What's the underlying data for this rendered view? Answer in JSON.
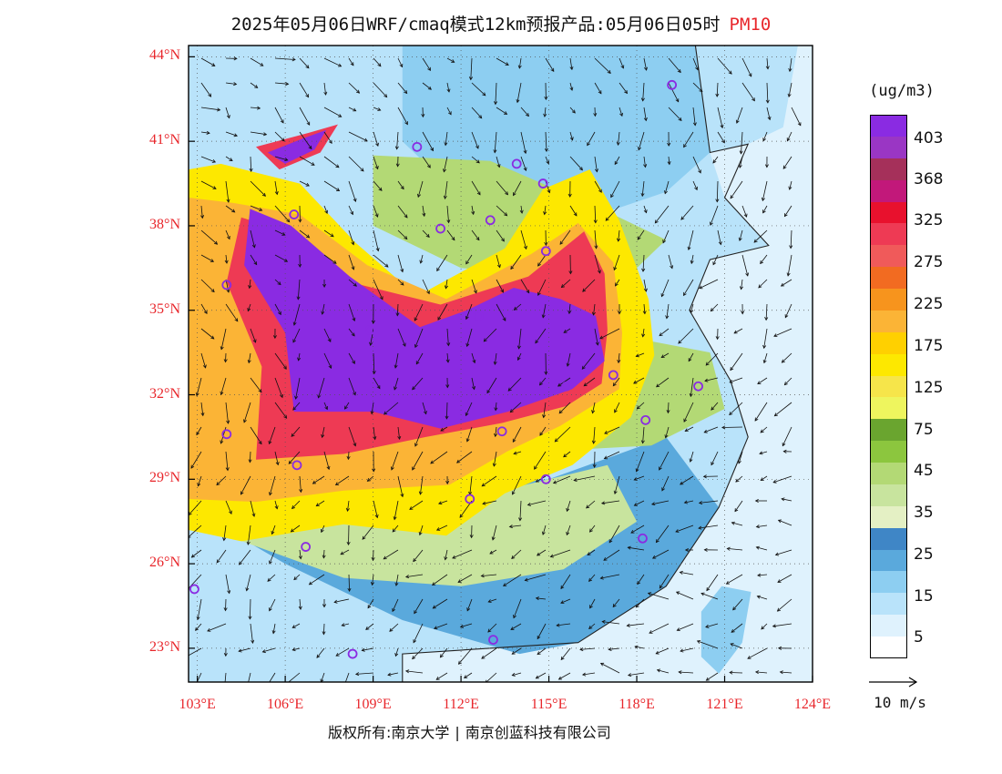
{
  "title": "2025年05月06日WRF/cmaq模式12km预报产品:05月06日05时",
  "variable": "PM10",
  "latitude_labels": [
    "44°N",
    "41°N",
    "38°N",
    "35°N",
    "32°N",
    "29°N",
    "26°N",
    "23°N"
  ],
  "longitude_labels": [
    "103°E",
    "106°E",
    "109°E",
    "112°E",
    "115°E",
    "118°E",
    "121°E",
    "124°E"
  ],
  "colorbar": {
    "unit": "(ug/m3)",
    "bins": [
      {
        "color": "#ffffff"
      },
      {
        "color": "#dff2fd"
      },
      {
        "color": "#b9e3fa"
      },
      {
        "color": "#8dcef1"
      },
      {
        "color": "#5aa9dc"
      },
      {
        "color": "#3f86c6"
      },
      {
        "color": "#e4f0c4"
      },
      {
        "color": "#c8e49e"
      },
      {
        "color": "#b3d975"
      },
      {
        "color": "#8cc63e"
      },
      {
        "color": "#6aa52f"
      },
      {
        "color": "#eef55e"
      },
      {
        "color": "#f6e54a"
      },
      {
        "color": "#fde800"
      },
      {
        "color": "#ffd000"
      },
      {
        "color": "#fbb436"
      },
      {
        "color": "#f7941d"
      },
      {
        "color": "#f26b21"
      },
      {
        "color": "#f05a5a"
      },
      {
        "color": "#ee3a54"
      },
      {
        "color": "#e8112d"
      },
      {
        "color": "#c2187a"
      },
      {
        "color": "#a5305a"
      },
      {
        "color": "#9a36c4"
      },
      {
        "color": "#8a2be2"
      }
    ],
    "labels": [
      "403",
      "368",
      "325",
      "275",
      "225",
      "175",
      "125",
      "75",
      "45",
      "35",
      "25",
      "15",
      "5"
    ]
  },
  "reference_vector": "10 m/s",
  "copyright": {
    "owner": "版权所有:南京大学",
    "partner": "南京创蓝科技有限公司"
  },
  "map_data": {
    "extent": {
      "lon_min": 102.7,
      "lon_max": 124.0,
      "lat_min": 21.8,
      "lat_max": 44.4
    },
    "zones": [
      {
        "name": "sea-east",
        "color": "#dff2fd",
        "poly": [
          [
            120,
            44.4
          ],
          [
            124,
            44.4
          ],
          [
            124,
            21.8
          ],
          [
            110,
            21.8
          ],
          [
            110,
            22.8
          ],
          [
            116,
            23.2
          ],
          [
            119,
            25.2
          ],
          [
            120.8,
            28
          ],
          [
            121.8,
            30.5
          ],
          [
            121.2,
            32.5
          ],
          [
            119.8,
            35
          ],
          [
            120.5,
            36.8
          ],
          [
            122.5,
            37.3
          ],
          [
            121,
            39
          ],
          [
            120.5,
            40.6
          ],
          [
            121.8,
            40.9
          ],
          [
            123,
            41.5
          ],
          [
            123.5,
            44.4
          ]
        ]
      },
      {
        "name": "taiwan-hi",
        "color": "#8dcef1",
        "poly": [
          [
            120.9,
            25.2
          ],
          [
            121.9,
            25
          ],
          [
            121.6,
            23.2
          ],
          [
            120.8,
            22.1
          ],
          [
            120.2,
            22.7
          ],
          [
            120.2,
            24.3
          ]
        ]
      },
      {
        "name": "land-north",
        "color": "#8dcef1",
        "poly": [
          [
            110,
            44.4
          ],
          [
            120,
            44.4
          ],
          [
            120.5,
            40.6
          ],
          [
            119,
            39.2
          ],
          [
            117,
            38.5
          ],
          [
            112,
            39
          ],
          [
            110,
            41
          ]
        ]
      },
      {
        "name": "land-south",
        "color": "#5aa9dc",
        "poly": [
          [
            102.7,
            28
          ],
          [
            106,
            26
          ],
          [
            110,
            24
          ],
          [
            114,
            22.8
          ],
          [
            116,
            23.2
          ],
          [
            119,
            25.2
          ],
          [
            120.8,
            28
          ],
          [
            119,
            30.5
          ],
          [
            115,
            29
          ],
          [
            110,
            28.5
          ],
          [
            106,
            29
          ],
          [
            102.7,
            29.5
          ]
        ]
      },
      {
        "name": "south-green",
        "color": "#c8e49e",
        "poly": [
          [
            104,
            27
          ],
          [
            108,
            25.5
          ],
          [
            112,
            25.2
          ],
          [
            115.5,
            25.8
          ],
          [
            118,
            27.5
          ],
          [
            117,
            29.5
          ],
          [
            113,
            28.5
          ],
          [
            108,
            27.8
          ],
          [
            104,
            28.2
          ]
        ]
      },
      {
        "name": "east-green",
        "color": "#b3d975",
        "poly": [
          [
            115,
            30
          ],
          [
            118.5,
            30.2
          ],
          [
            121,
            31.5
          ],
          [
            120.5,
            33.5
          ],
          [
            118,
            34
          ],
          [
            116,
            33
          ]
        ]
      },
      {
        "name": "north-green",
        "color": "#b3d975",
        "poly": [
          [
            109,
            40.5
          ],
          [
            113,
            40.3
          ],
          [
            117,
            38.5
          ],
          [
            119,
            37.5
          ],
          [
            117.5,
            36
          ],
          [
            112,
            36.5
          ],
          [
            109,
            38
          ]
        ]
      },
      {
        "name": "outer-yellow",
        "color": "#fde800",
        "poly": [
          [
            102.7,
            27.2
          ],
          [
            104.5,
            26.8
          ],
          [
            108,
            27.4
          ],
          [
            111.5,
            27
          ],
          [
            113.5,
            28.5
          ],
          [
            115.8,
            29.5
          ],
          [
            117.8,
            31.2
          ],
          [
            118.6,
            33.4
          ],
          [
            118.4,
            35.4
          ],
          [
            117.4,
            38.2
          ],
          [
            116.4,
            40
          ],
          [
            114.8,
            39.3
          ],
          [
            113.5,
            37.2
          ],
          [
            110.5,
            35.5
          ],
          [
            108.4,
            37.4
          ],
          [
            106.5,
            39.5
          ],
          [
            103.8,
            40.2
          ],
          [
            102.7,
            40
          ]
        ]
      },
      {
        "name": "orange",
        "color": "#fbb436",
        "poly": [
          [
            102.7,
            28.3
          ],
          [
            105,
            28.2
          ],
          [
            108,
            28.6
          ],
          [
            111.6,
            28.8
          ],
          [
            113.6,
            30
          ],
          [
            115.4,
            30.9
          ],
          [
            117.4,
            32.2
          ],
          [
            117.5,
            34.2
          ],
          [
            117.2,
            36.7
          ],
          [
            116,
            38.1
          ],
          [
            114.4,
            37
          ],
          [
            111.5,
            35.4
          ],
          [
            108.8,
            36.6
          ],
          [
            106.5,
            38.4
          ],
          [
            104.3,
            38.8
          ],
          [
            102.7,
            39
          ]
        ]
      },
      {
        "name": "red",
        "color": "#ee3a54",
        "poly": [
          [
            105,
            29.7
          ],
          [
            108,
            29.9
          ],
          [
            110.8,
            30.5
          ],
          [
            113.4,
            31
          ],
          [
            115.6,
            31.6
          ],
          [
            116.8,
            32.4
          ],
          [
            117,
            34.3
          ],
          [
            116.9,
            36.3
          ],
          [
            116.2,
            37.8
          ],
          [
            114.3,
            36.2
          ],
          [
            111.3,
            35.2
          ],
          [
            108.2,
            36
          ],
          [
            106.3,
            37.7
          ],
          [
            104.5,
            38.3
          ],
          [
            104,
            36
          ],
          [
            105.2,
            33
          ]
        ]
      },
      {
        "name": "purple-core",
        "color": "#8a2be2",
        "poly": [
          [
            106.3,
            31.4
          ],
          [
            109,
            31.4
          ],
          [
            111.3,
            30.8
          ],
          [
            113.6,
            31.4
          ],
          [
            115.8,
            32.2
          ],
          [
            116.9,
            33.2
          ],
          [
            116.6,
            34.8
          ],
          [
            115.4,
            35.4
          ],
          [
            113.8,
            35.8
          ],
          [
            112.2,
            35
          ],
          [
            110.6,
            34.4
          ],
          [
            108.2,
            36.2
          ],
          [
            106.2,
            38
          ],
          [
            104.8,
            38.6
          ],
          [
            104.6,
            36.6
          ],
          [
            106,
            34.2
          ]
        ]
      },
      {
        "name": "nw-red",
        "color": "#ee3a54",
        "poly": [
          [
            105,
            40.8
          ],
          [
            106.8,
            41.3
          ],
          [
            107.8,
            41.6
          ],
          [
            107.2,
            40.6
          ],
          [
            105.8,
            40
          ]
        ]
      },
      {
        "name": "nw-purple",
        "color": "#8a2be2",
        "poly": [
          [
            105.4,
            40.6
          ],
          [
            106.6,
            41.1
          ],
          [
            107.4,
            41.4
          ],
          [
            107,
            40.7
          ],
          [
            106,
            40.2
          ]
        ]
      }
    ],
    "cities": [
      {
        "lon": 119.2,
        "lat": 43.0
      },
      {
        "lon": 110.5,
        "lat": 40.8
      },
      {
        "lon": 113.9,
        "lat": 40.2
      },
      {
        "lon": 114.8,
        "lat": 39.5
      },
      {
        "lon": 106.3,
        "lat": 38.4
      },
      {
        "lon": 111.3,
        "lat": 37.9
      },
      {
        "lon": 113.0,
        "lat": 38.2
      },
      {
        "lon": 114.9,
        "lat": 37.1
      },
      {
        "lon": 104.0,
        "lat": 35.9
      },
      {
        "lon": 108.9,
        "lat": 34.3
      },
      {
        "lon": 112.6,
        "lat": 34.8
      },
      {
        "lon": 117.2,
        "lat": 32.7
      },
      {
        "lon": 115.6,
        "lat": 32.3
      },
      {
        "lon": 120.1,
        "lat": 32.3
      },
      {
        "lon": 104.0,
        "lat": 30.6
      },
      {
        "lon": 106.4,
        "lat": 29.5
      },
      {
        "lon": 113.4,
        "lat": 30.7
      },
      {
        "lon": 118.3,
        "lat": 31.1
      },
      {
        "lon": 114.9,
        "lat": 29.0
      },
      {
        "lon": 112.3,
        "lat": 28.3
      },
      {
        "lon": 106.7,
        "lat": 26.6
      },
      {
        "lon": 118.2,
        "lat": 26.9
      },
      {
        "lon": 102.9,
        "lat": 25.1
      },
      {
        "lon": 108.3,
        "lat": 22.8
      },
      {
        "lon": 113.1,
        "lat": 23.3
      }
    ]
  }
}
